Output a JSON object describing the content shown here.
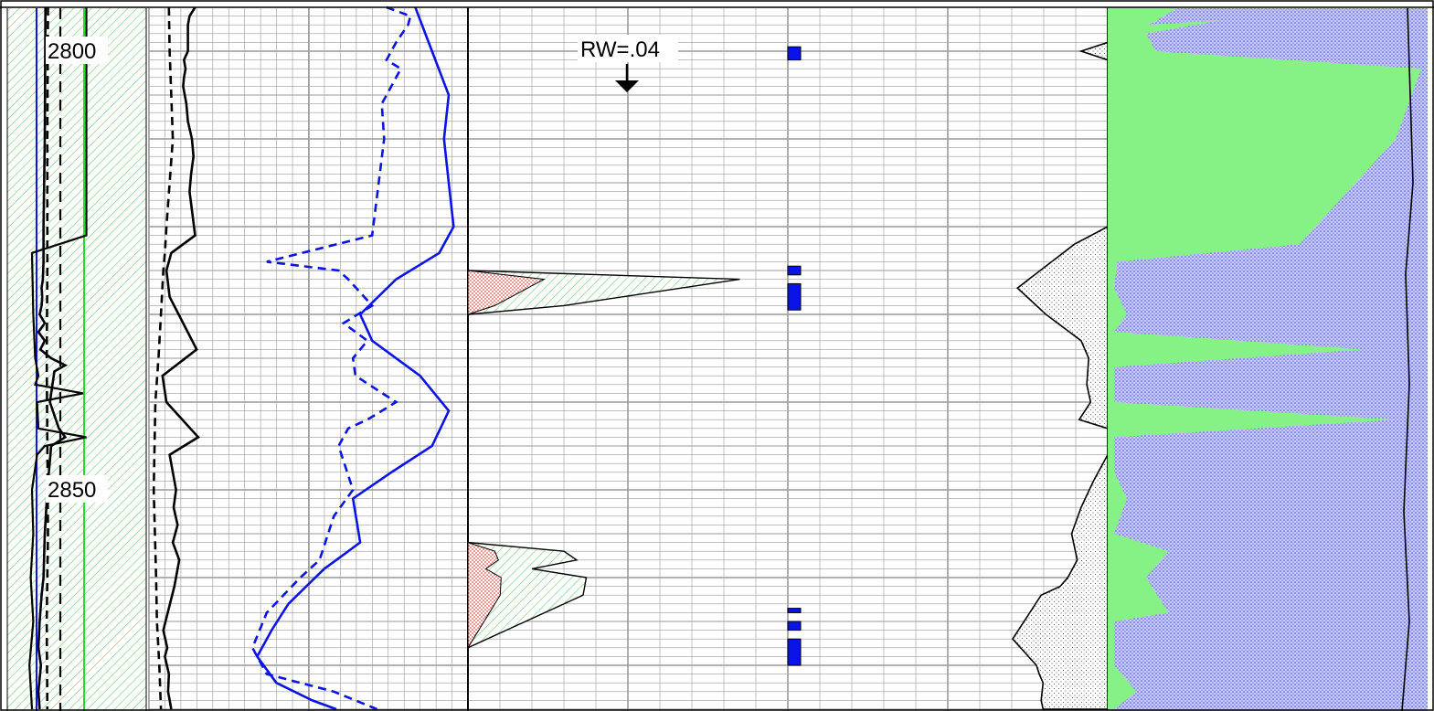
{
  "chart_data": {
    "type": "line",
    "title": "",
    "depth_range": [
      2795,
      2875
    ],
    "depth_ticks": [
      2800,
      2850
    ],
    "depth_labels": [
      "2800",
      "2850"
    ],
    "annotation": "RW=.04",
    "colors": {
      "grid": "#9a9a9a",
      "curve": "#000000",
      "blue": "#0a14e6",
      "green": "#22dd22",
      "fill_green": "#86f286",
      "fill_blue": "#a4a8ee",
      "hatch": "#7fd27f",
      "red": "#e05050",
      "gray": "#9a9a9a"
    },
    "tracks": [
      {
        "name": "",
        "curves": [
          {
            "style": "solid",
            "color": "#000000",
            "x": [
              0.31,
              0.3,
              0.28,
              0.28,
              0.27,
              0.25,
              0.26,
              0.25,
              0.22,
              0.3,
              0.2,
              0.3,
              0.23,
              0.4,
              0.62,
              0.45,
              0.38,
              0.52,
              0.62,
              0.4,
              0.34,
              0.3,
              0.28,
              0.25,
              0.22,
              0.2,
              0.24,
              0.2,
              0.22
            ],
            "depth": [
              2795,
              2810,
              2820,
              2824,
              2826,
              2827,
              2828,
              2829,
              2830,
              2831,
              2832,
              2833,
              2834,
              2835,
              2835.8,
              2836.5,
              2840,
              2843,
              2844,
              2845,
              2850,
              2855,
              2860,
              2862,
              2865,
              2868,
              2870,
              2873,
              2875
            ]
          },
          {
            "style": "dashed",
            "color": "#000000",
            "x": [
              0.35,
              0.34,
              0.34,
              0.33,
              0.34,
              0.35,
              0.33,
              0.34
            ],
            "depth": [
              2795,
              2810,
              2825,
              2835,
              2845,
              2855,
              2865,
              2875
            ]
          }
        ]
      },
      {
        "name": "",
        "curves": [
          {
            "style": "solid",
            "color": "#000000",
            "x": [
              0.58,
              0.51,
              0.49,
              0.49,
              0.44,
              0.46,
              0.44,
              0.43,
              0.47,
              0.49,
              0.54,
              0.56,
              0.53,
              0.51,
              0.58,
              0.28,
              0.22,
              0.26,
              0.6,
              0.17,
              0.22,
              0.62,
              0.26,
              0.3,
              0.34,
              0.31,
              0.36,
              0.3,
              0.38,
              0.32,
              0.18,
              0.23,
              0.2,
              0.25,
              0.24,
              0.28
            ],
            "depth": [
              2795,
              2796,
              2797,
              2800,
              2801,
              2802,
              2803,
              2804,
              2806,
              2808,
              2810,
              2812,
              2814,
              2816,
              2821,
              2823,
              2825,
              2828,
              2834,
              2837,
              2840,
              2844,
              2846,
              2848,
              2850,
              2852,
              2854,
              2856,
              2858,
              2861,
              2866,
              2868,
              2869,
              2871,
              2873,
              2875
            ]
          },
          {
            "style": "dashed",
            "color": "#000000",
            "x": [
              0.25,
              0.26,
              0.28,
              0.3,
              0.26,
              0.22,
              0.2,
              0.18,
              0.15,
              0.12,
              0.08,
              0.06,
              0.09,
              0.1,
              0.13,
              0.15
            ],
            "depth": [
              2795,
              2800,
              2805,
              2810,
              2815,
              2820,
              2823,
              2825,
              2830,
              2835,
              2840,
              2850,
              2860,
              2865,
              2870,
              2875
            ]
          }
        ]
      },
      {
        "name": "",
        "curves": [
          {
            "style": "solid",
            "color": "#0a14e6",
            "x": [
              0.78,
              0.85,
              0.92,
              0.9,
              0.92,
              0.94,
              0.88,
              0.7,
              0.55,
              0.6,
              0.8,
              0.92,
              0.85,
              0.68,
              0.52,
              0.55,
              0.4,
              0.25,
              0.18,
              0.12,
              0.2,
              0.35,
              0.45
            ],
            "depth": [
              2795,
              2800,
              2805,
              2810,
              2815,
              2820,
              2823,
              2826,
              2830,
              2833,
              2837,
              2841,
              2845,
              2848,
              2851,
              2856,
              2859,
              2863,
              2866,
              2869,
              2872,
              2874,
              2875
            ]
          },
          {
            "style": "dashed",
            "color": "#0a14e6",
            "x": [
              0.66,
              0.76,
              0.75,
              0.7,
              0.66,
              0.72,
              0.68,
              0.64,
              0.65,
              0.6,
              0.16,
              0.46,
              0.5,
              0.6,
              0.48,
              0.58,
              0.52,
              0.53,
              0.7,
              0.58,
              0.5,
              0.46,
              0.52,
              0.44,
              0.38,
              0.3,
              0.16,
              0.1,
              0.16,
              0.44,
              0.62
            ],
            "depth": [
              2795,
              2796,
              2797,
              2799,
              2801,
              2802,
              2804,
              2806,
              2810,
              2821,
              2824,
              2825,
              2826,
              2829,
              2831,
              2833,
              2835,
              2837,
              2840,
              2842,
              2843,
              2845,
              2850,
              2853,
              2858,
              2860,
              2864,
              2868,
              2871,
              2873,
              2875
            ]
          }
        ]
      },
      {
        "name": "",
        "curves": [
          {
            "style": "solid",
            "color": "#000000",
            "x": [
              0.0,
              0.0,
              0.85,
              0.3,
              0.0,
              0.0,
              0.3,
              0.34,
              0.2,
              0.37,
              0.36,
              0.0
            ],
            "depth": [
              2795,
              2825,
              2826,
              2829,
              2830,
              2856,
              2857,
              2858,
              2859,
              2860,
              2862,
              2868
            ]
          }
        ]
      },
      {
        "name": "",
        "bars": [
          {
            "top": 2799.5,
            "bottom": 2801
          },
          {
            "top": 2824.5,
            "bottom": 2825.5
          },
          {
            "top": 2826.5,
            "bottom": 2829.5
          },
          {
            "top": 2863.5,
            "bottom": 2864
          },
          {
            "top": 2865,
            "bottom": 2866
          },
          {
            "top": 2867,
            "bottom": 2870
          }
        ]
      },
      {
        "name": "",
        "curves": [
          {
            "style": "solid",
            "color": "#000000",
            "x": [
              1.0,
              1.0,
              0.72,
              1.0,
              1.0,
              0.65,
              0.05,
              0.35,
              0.72,
              0.8,
              0.78,
              0.82,
              0.7,
              1.0,
              1.0,
              0.85,
              0.72,
              0.62,
              0.68,
              0.58,
              0.5,
              0.3,
              0.0,
              0.25,
              0.28,
              0.32,
              0.3,
              0.32
            ],
            "depth": [
              2795,
              2799,
              2800,
              2801,
              2820,
              2822,
              2827,
              2830,
              2833,
              2835,
              2838,
              2840,
              2842,
              2843,
              2846,
              2849,
              2852,
              2855,
              2858,
              2860,
              2861,
              2862,
              2867,
              2870,
              2871,
              2872,
              2874,
              2875
            ]
          }
        ]
      },
      {
        "name": "",
        "curves": [
          {
            "style": "solid",
            "color": "#000000",
            "x": [
              0.22,
              0.13,
              0.35,
              0.12,
              0.15,
              0.98,
              0.9,
              0.6,
              0.03,
              0.02,
              0.06,
              0.02,
              0.8,
              0.02,
              0.02,
              0.9,
              0.02,
              0.02,
              0.06,
              0.02,
              0.19,
              0.12,
              0.19,
              0.02,
              0.02,
              0.09,
              0.02
            ],
            "depth": [
              2795,
              2797,
              2796.5,
              2798,
              2800,
              2802,
              2810,
              2822,
              2824,
              2827,
              2830,
              2832,
              2834,
              2836,
              2840,
              2842,
              2844,
              2848,
              2851,
              2855,
              2857,
              2860,
              2864,
              2865,
              2870,
              2873,
              2875
            ]
          }
        ]
      }
    ]
  }
}
